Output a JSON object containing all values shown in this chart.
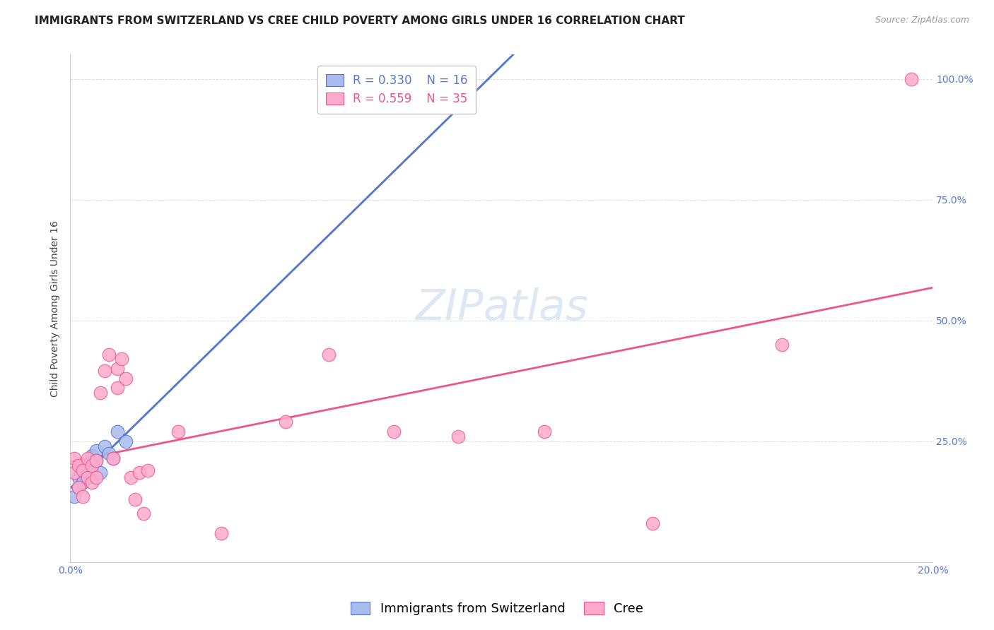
{
  "title": "IMMIGRANTS FROM SWITZERLAND VS CREE CHILD POVERTY AMONG GIRLS UNDER 16 CORRELATION CHART",
  "source": "Source: ZipAtlas.com",
  "ylabel": "Child Poverty Among Girls Under 16",
  "xlim": [
    0.0,
    0.2
  ],
  "ylim": [
    0.0,
    1.05
  ],
  "ytick_values": [
    0.0,
    0.25,
    0.5,
    0.75,
    1.0
  ],
  "ytick_labels": [
    "",
    "25.0%",
    "50.0%",
    "75.0%",
    "100.0%"
  ],
  "xtick_values": [
    0.0,
    0.04,
    0.08,
    0.12,
    0.16,
    0.2
  ],
  "xtick_labels": [
    "0.0%",
    "",
    "",
    "",
    "",
    "20.0%"
  ],
  "blue_fill": "#AABBEE",
  "blue_edge": "#5577CC",
  "pink_fill": "#FFAACC",
  "pink_edge": "#EE5588",
  "blue_line": "#5577CC",
  "pink_line": "#EE5588",
  "dashed_line": "#AACCEE",
  "background_color": "#FFFFFF",
  "grid_color": "#DDDDDD",
  "watermark": "ZIPatlas",
  "watermark_fontsize": 44,
  "title_fontsize": 11,
  "axis_label_fontsize": 10,
  "tick_fontsize": 10,
  "legend_fontsize": 12,
  "swiss_x": [
    0.001,
    0.002,
    0.002,
    0.003,
    0.003,
    0.004,
    0.004,
    0.005,
    0.006,
    0.006,
    0.007,
    0.008,
    0.009,
    0.01,
    0.011,
    0.013
  ],
  "swiss_y": [
    0.135,
    0.175,
    0.155,
    0.195,
    0.165,
    0.2,
    0.185,
    0.22,
    0.23,
    0.21,
    0.185,
    0.24,
    0.225,
    0.215,
    0.27,
    0.25
  ],
  "cree_x": [
    0.001,
    0.001,
    0.002,
    0.002,
    0.003,
    0.003,
    0.004,
    0.004,
    0.005,
    0.005,
    0.006,
    0.006,
    0.007,
    0.008,
    0.009,
    0.01,
    0.011,
    0.011,
    0.012,
    0.013,
    0.014,
    0.015,
    0.016,
    0.017,
    0.018,
    0.025,
    0.035,
    0.05,
    0.06,
    0.075,
    0.09,
    0.11,
    0.135,
    0.165,
    0.195
  ],
  "cree_y": [
    0.215,
    0.185,
    0.2,
    0.155,
    0.19,
    0.135,
    0.175,
    0.215,
    0.165,
    0.2,
    0.21,
    0.175,
    0.35,
    0.395,
    0.43,
    0.215,
    0.36,
    0.4,
    0.42,
    0.38,
    0.175,
    0.13,
    0.185,
    0.1,
    0.19,
    0.27,
    0.06,
    0.29,
    0.43,
    0.27,
    0.26,
    0.27,
    0.08,
    0.45,
    1.0
  ]
}
